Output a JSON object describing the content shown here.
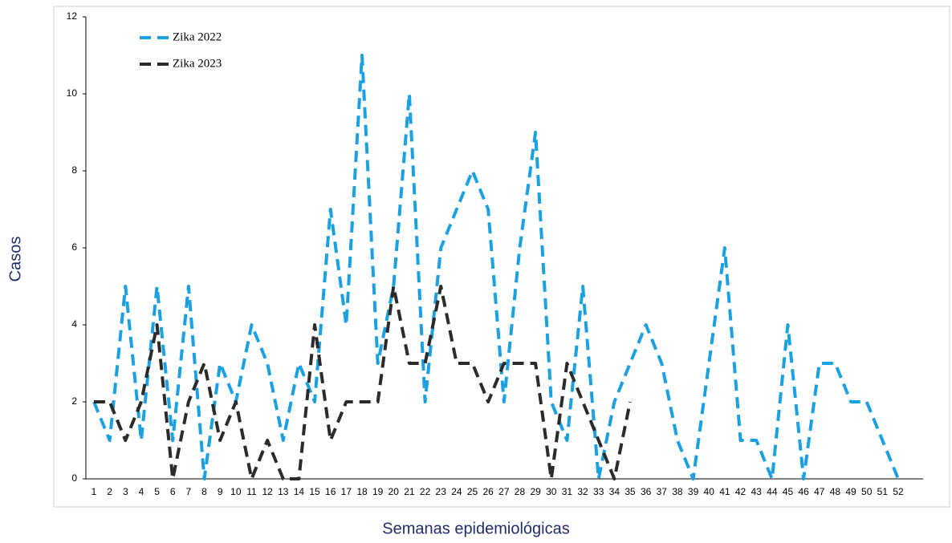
{
  "chart_data": {
    "type": "line",
    "x_label": "Semanas epidemiológicas",
    "y_label": "Casos",
    "categories": [
      "1",
      "2",
      "3",
      "4",
      "5",
      "6",
      "7",
      "8",
      "9",
      "10",
      "11",
      "12",
      "13",
      "14",
      "15",
      "16",
      "17",
      "18",
      "19",
      "20",
      "21",
      "22",
      "23",
      "24",
      "25",
      "26",
      "27",
      "28",
      "29",
      "30",
      "31",
      "32",
      "33",
      "34",
      "35",
      "36",
      "37",
      "38",
      "39",
      "40",
      "41",
      "42",
      "43",
      "44",
      "45",
      "46",
      "47",
      "48",
      "49",
      "50",
      "51",
      "52"
    ],
    "series": [
      {
        "name": "Zika 2022",
        "color": "#1ba1e2",
        "values": [
          2,
          1,
          5,
          1,
          5,
          1,
          5,
          0,
          3,
          2,
          4,
          3,
          1,
          3,
          2,
          7,
          4,
          11,
          3,
          5,
          10,
          2,
          6,
          7,
          8,
          7,
          2,
          6,
          9,
          2,
          1,
          5,
          0,
          2,
          3,
          4,
          3,
          1,
          0,
          3,
          6,
          1,
          1,
          0,
          4,
          0,
          3,
          3,
          2,
          2,
          1,
          0
        ]
      },
      {
        "name": "Zika 2023",
        "color": "#2b2b2b",
        "values": [
          2,
          2,
          1,
          2,
          4,
          0,
          2,
          3,
          1,
          2,
          0,
          1,
          0,
          0,
          4,
          1,
          2,
          2,
          2,
          5,
          3,
          3,
          5,
          3,
          3,
          2,
          3,
          3,
          3,
          0,
          3,
          2,
          1,
          0,
          2,
          null,
          null,
          null,
          null,
          null,
          null,
          null,
          null,
          null,
          null,
          null,
          null,
          null,
          null,
          null,
          null,
          null
        ]
      }
    ],
    "ylim": [
      0,
      12
    ],
    "yticks": [
      0,
      2,
      4,
      6,
      8,
      10,
      12
    ],
    "legend": "upper-left"
  }
}
